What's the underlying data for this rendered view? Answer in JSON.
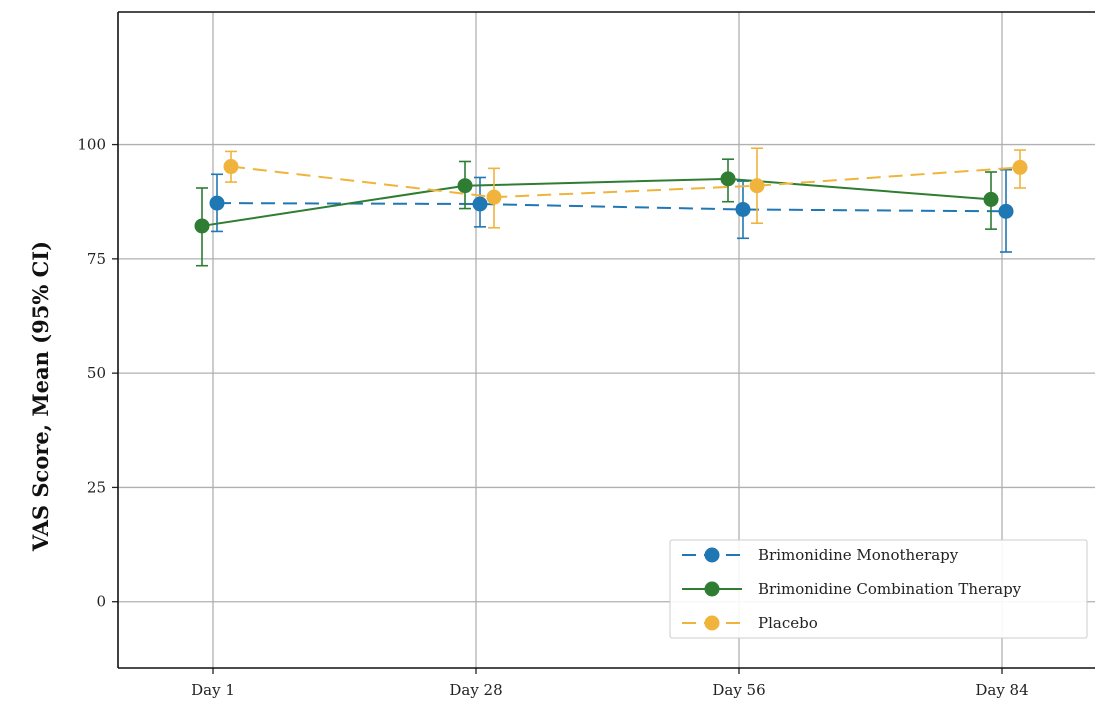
{
  "chart_data": {
    "type": "line",
    "title": "",
    "xlabel": "",
    "ylabel": "VAS Score, Mean (95% CI)",
    "categories": [
      "Day 1",
      "Day 28",
      "Day 56",
      "Day 84"
    ],
    "ylim": [
      -14.5,
      129
    ],
    "yticks": [
      0,
      25,
      50,
      75,
      100
    ],
    "grid": true,
    "legend_position": "lower right",
    "series": [
      {
        "name": "Brimonidine Monotherapy",
        "color": "#1f77b4",
        "linestyle": "dashed",
        "values": [
          87.2,
          87.0,
          85.8,
          85.4
        ],
        "ci_low": [
          81.0,
          82.0,
          79.5,
          76.5
        ],
        "ci_high": [
          93.5,
          92.8,
          92.0,
          94.5
        ]
      },
      {
        "name": "Brimonidine Combination Therapy",
        "color": "#2e7d32",
        "linestyle": "solid",
        "values": [
          82.2,
          91.0,
          92.5,
          88.0
        ],
        "ci_low": [
          73.5,
          86.0,
          87.5,
          81.5
        ],
        "ci_high": [
          90.5,
          96.3,
          96.8,
          94.0
        ]
      },
      {
        "name": "Placebo",
        "color": "#f0b43c",
        "linestyle": "dashed",
        "values": [
          95.2,
          88.5,
          91.0,
          95.0
        ],
        "ci_low": [
          91.8,
          81.8,
          82.8,
          90.5
        ],
        "ci_high": [
          98.5,
          94.8,
          99.2,
          98.8
        ]
      }
    ]
  }
}
